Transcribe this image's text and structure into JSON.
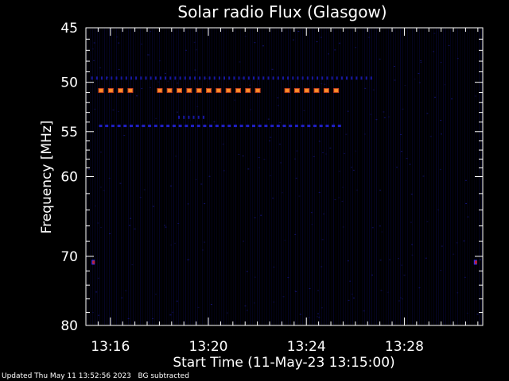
{
  "footer": {
    "updated": "Updated Thu May 11 13:52:56 2023",
    "background_note": "BG subtracted"
  },
  "colors": {
    "background": "#000000",
    "axes": "#ffffff",
    "noise": "#0a0a50",
    "band_blue": "#2020c8",
    "band_hot": "#ff8c28",
    "spot": "#c02030"
  },
  "chart_data": {
    "type": "heatmap",
    "title": "Solar radio Flux (Glasgow)",
    "xlabel": "Start Time (11-May-23 13:15:00)",
    "ylabel": "Frequency [MHz]",
    "y_scale": "log",
    "xlim_minutes_from_start": [
      0,
      16.2
    ],
    "ylim_mhz": [
      80,
      45
    ],
    "x_ticks": [
      {
        "label": "13:16",
        "minutes": 1
      },
      {
        "label": "13:20",
        "minutes": 5
      },
      {
        "label": "13:24",
        "minutes": 9
      },
      {
        "label": "13:28",
        "minutes": 13
      }
    ],
    "y_ticks": [
      {
        "label": "45",
        "mhz": 45
      },
      {
        "label": "50",
        "mhz": 50
      },
      {
        "label": "55",
        "mhz": 55
      },
      {
        "label": "60",
        "mhz": 60
      },
      {
        "label": "70",
        "mhz": 70
      },
      {
        "label": "80",
        "mhz": 80
      }
    ],
    "y_minor_ticks_mhz": [
      46,
      47,
      48,
      49,
      51,
      52,
      53,
      54,
      56,
      57,
      58,
      59,
      62,
      64,
      66,
      68,
      72,
      74,
      76,
      78
    ],
    "x_minor_ticks_minutes": [
      0.5,
      1.5,
      2,
      2.5,
      3,
      3.5,
      4,
      4.5,
      5.5,
      6,
      6.5,
      7,
      7.5,
      8,
      8.5,
      9.5,
      10,
      10.5,
      11,
      11.5,
      12,
      12.5,
      13.5,
      14,
      14.5,
      15,
      15.5,
      16
    ],
    "emission_bands": [
      {
        "mhz": 49.6,
        "start_min": 0.25,
        "end_min": 11.8,
        "intensity": "low"
      },
      {
        "mhz": 50.8,
        "start_min": 0.6,
        "end_min": 10.4,
        "intensity": "high",
        "gaps": [
          [
            2.1,
            2.9
          ],
          [
            7.1,
            7.9
          ]
        ]
      },
      {
        "mhz": 54.4,
        "start_min": 0.6,
        "end_min": 10.4,
        "intensity": "medium"
      },
      {
        "mhz": 53.5,
        "start_min": 3.8,
        "end_min": 4.9,
        "intensity": "low"
      },
      {
        "mhz": 70.8,
        "start_min": 0.3,
        "end_min": 0.4,
        "intensity": "spot"
      },
      {
        "mhz": 70.8,
        "start_min": 15.9,
        "end_min": 16.0,
        "intensity": "spot"
      }
    ]
  }
}
